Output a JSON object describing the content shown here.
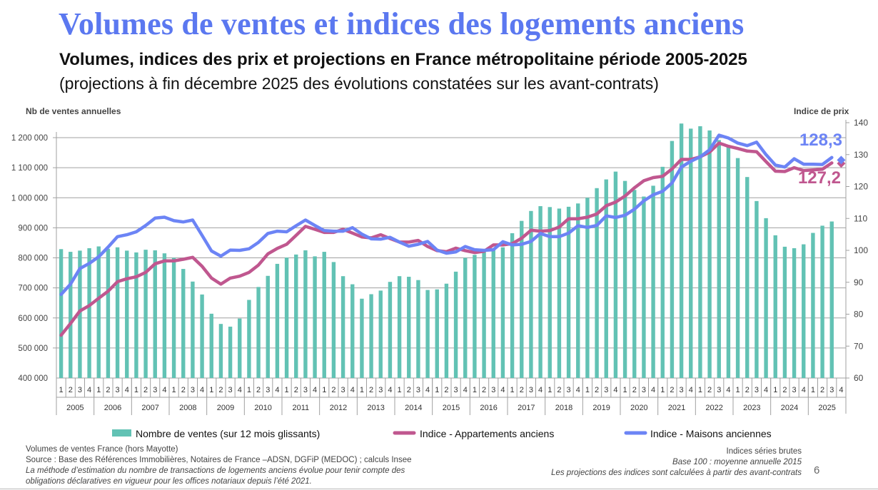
{
  "title": "Volumes de ventes et indices des logements anciens",
  "subtitle": "Volumes, indices des prix et projections en France métropolitaine période 2005-2025",
  "subtitle2": "(projections à fin décembre 2025 des évolutions constatées sur les avant-contrats)",
  "notes_left": [
    "Volumes de ventes France (hors Mayotte)",
    "Source : Base des Références Immobilières, Notaires de France –ADSN, DGFiP (MEDOC) ; calculs Insee",
    "La méthode d’estimation du nombre de transactions de logements anciens évolue pour tenir compte des",
    "obligations déclaratives en vigueur pour les offices notariaux depuis l’été 2021."
  ],
  "notes_right": [
    "Indices séries brutes",
    "Base 100 : moyenne annuelle 2015",
    "Les projections des indices sont calculées à partir des avant-contrats"
  ],
  "page_number": "6",
  "colors": {
    "bars": "#62c2b4",
    "apartments": "#c0578f",
    "houses": "#6c84f5",
    "grid": "#a0a0a0"
  },
  "chart_data": {
    "type": "bar+line",
    "ylabel": "Nb de ventes annuelles",
    "y2label": "Indice de prix",
    "ylim": [
      400000,
      1200000
    ],
    "y2lim": [
      60,
      140
    ],
    "yticks": [
      "400 000",
      "500 000",
      "600 000",
      "700 000",
      "800 000",
      "900 000",
      "1 000 000",
      "1 100 000",
      "1 200 000"
    ],
    "y2ticks": [
      "60",
      "70",
      "80",
      "90",
      "100",
      "110",
      "120",
      "130",
      "140"
    ],
    "years": [
      "2005",
      "2006",
      "2007",
      "2008",
      "2009",
      "2010",
      "2011",
      "2012",
      "2013",
      "2014",
      "2015",
      "2016",
      "2017",
      "2018",
      "2019",
      "2020",
      "2021",
      "2022",
      "2023",
      "2024",
      "2025"
    ],
    "quarters": [
      "1",
      "2",
      "3",
      "4"
    ],
    "grid": true,
    "legend_position": "bottom",
    "series": [
      {
        "name": "Nombre de ventes (sur 12 mois glissants)",
        "type": "bar",
        "axis": "left",
        "values": [
          829000,
          820000,
          824000,
          832000,
          838000,
          830000,
          835000,
          824000,
          818000,
          827000,
          825000,
          815000,
          800000,
          763000,
          721000,
          678000,
          614000,
          580000,
          571000,
          598000,
          660000,
          703000,
          740000,
          780000,
          801000,
          811000,
          825000,
          805000,
          820000,
          786000,
          739000,
          712000,
          664000,
          679000,
          691000,
          720000,
          739000,
          737000,
          726000,
          693000,
          695000,
          714000,
          754000,
          800000,
          810000,
          820000,
          828000,
          835000,
          882000,
          923000,
          956000,
          972000,
          969000,
          964000,
          970000,
          981000,
          1000000,
          1032000,
          1061000,
          1087000,
          1056000,
          1026000,
          1004000,
          1040000,
          1103000,
          1189000,
          1247000,
          1230000,
          1238000,
          1224000,
          1192000,
          1168000,
          1132000,
          1069000,
          989000,
          932000,
          875000,
          837000,
          832000,
          845000,
          883000,
          907000,
          921000
        ]
      },
      {
        "name": "Indice - Appartements anciens",
        "type": "line",
        "axis": "right",
        "values": [
          73.4,
          77.1,
          81.0,
          82.7,
          85.0,
          87.2,
          90.2,
          91.1,
          91.7,
          93.1,
          95.8,
          96.7,
          96.7,
          97.2,
          97.8,
          95.0,
          91.3,
          89.4,
          91.3,
          91.9,
          93.1,
          95.4,
          98.9,
          100.6,
          101.9,
          104.7,
          107.5,
          106.6,
          105.6,
          105.6,
          106.6,
          105.4,
          104.2,
          103.9,
          104.9,
          103.7,
          102.6,
          102.6,
          103.1,
          101.2,
          99.9,
          99.6,
          100.7,
          99.9,
          99.3,
          99.7,
          101.7,
          101.7,
          102.1,
          103.8,
          106.3,
          106.0,
          106.2,
          107.3,
          109.9,
          109.9,
          110.4,
          111.4,
          114.0,
          115.1,
          117.0,
          119.6,
          121.8,
          122.8,
          123.2,
          125.5,
          128.5,
          128.5,
          129.3,
          130.8,
          133.6,
          132.6,
          131.9,
          131.1,
          130.9,
          127.8,
          124.8,
          124.7,
          125.9,
          125.0,
          125.2,
          125.4,
          127.4
        ],
        "projection": 127.2,
        "projection_label": "127,2"
      },
      {
        "name": "Indice - Maisons anciennes",
        "type": "line",
        "axis": "right",
        "values": [
          86.2,
          89.4,
          94.3,
          95.9,
          98.0,
          101.0,
          104.3,
          104.9,
          105.8,
          107.8,
          110.1,
          110.4,
          109.3,
          108.9,
          109.5,
          104.7,
          99.8,
          98.2,
          100.1,
          100.0,
          100.5,
          102.5,
          105.3,
          106.0,
          105.8,
          107.7,
          109.5,
          107.8,
          106.2,
          106.0,
          106.0,
          107.1,
          105.1,
          103.6,
          103.5,
          104.1,
          102.6,
          101.3,
          101.9,
          102.8,
          100.1,
          99.1,
          99.5,
          101.2,
          100.2,
          100.0,
          100.2,
          102.7,
          101.7,
          101.9,
          102.8,
          105.3,
          104.3,
          104.3,
          105.4,
          107.7,
          107.2,
          107.8,
          110.8,
          110.3,
          111.0,
          112.9,
          115.5,
          117.4,
          118.5,
          121.1,
          126.1,
          127.9,
          129.3,
          131.5,
          136.1,
          135.2,
          133.6,
          132.8,
          133.9,
          130.0,
          126.7,
          126.1,
          128.7,
          127.0,
          127.0,
          126.9,
          129.1
        ],
        "projection": 128.3,
        "projection_label": "128,3"
      }
    ]
  }
}
